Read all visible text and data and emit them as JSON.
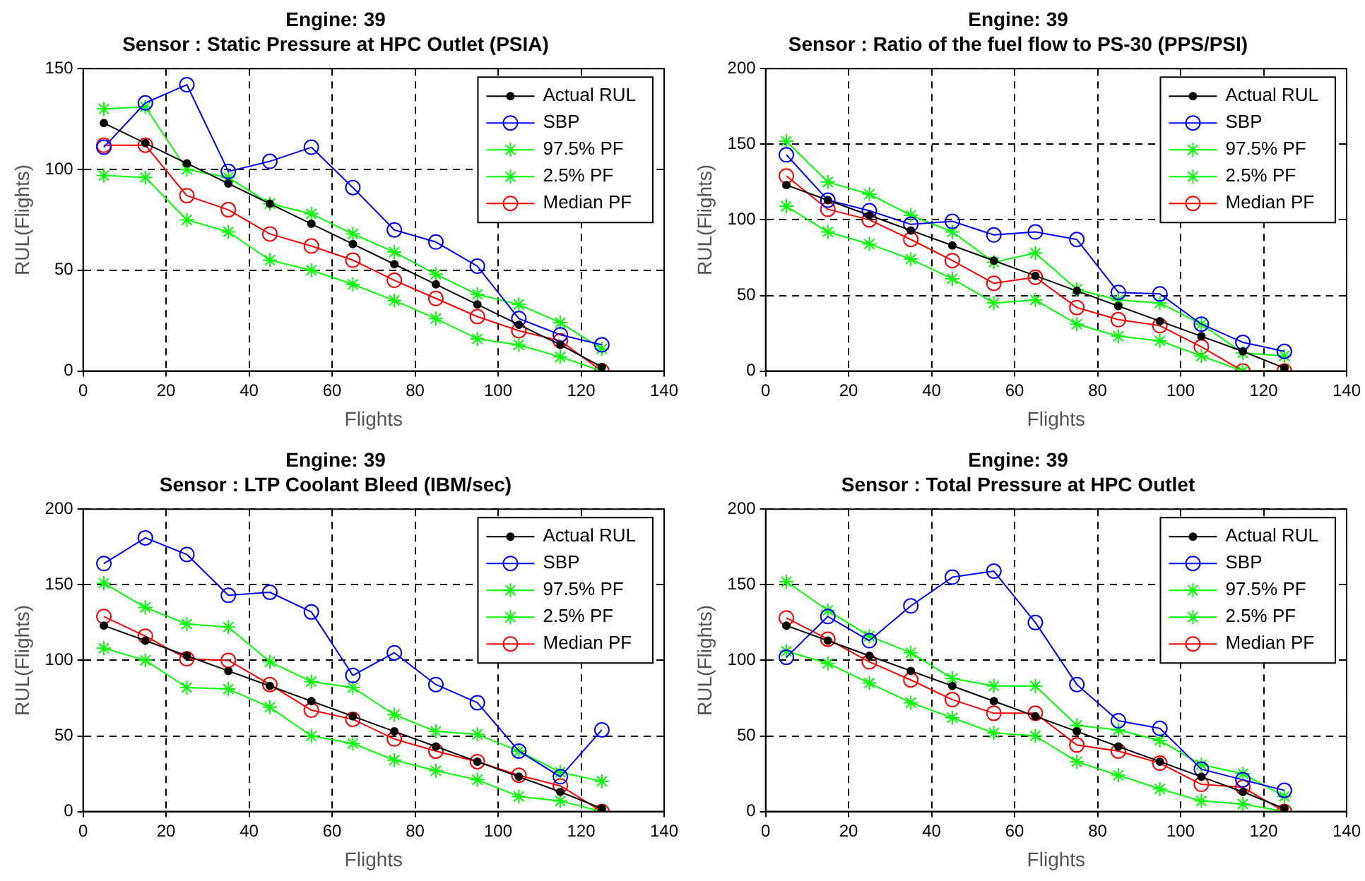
{
  "chart_data": [
    {
      "type": "line",
      "title": "Engine: 39",
      "subtitle": "Sensor : Static Pressure at HPC Outlet (PSIA)",
      "xlabel": "Flights",
      "ylabel": "RUL(Flights)",
      "x": [
        5,
        15,
        25,
        35,
        45,
        55,
        65,
        75,
        85,
        95,
        105,
        115,
        125
      ],
      "xlim": [
        0,
        140
      ],
      "xticks": [
        0,
        20,
        40,
        60,
        80,
        100,
        120,
        140
      ],
      "ylim": [
        0,
        150
      ],
      "yticks": [
        0,
        50,
        100,
        150
      ],
      "grid": true,
      "legend": "top right",
      "line_style": "solid",
      "series": [
        {
          "name": "Actual RUL",
          "color": "#000000",
          "marker": "circle",
          "values": [
            123,
            113,
            103,
            93,
            83,
            73,
            63,
            53,
            43,
            33,
            23,
            13,
            2
          ]
        },
        {
          "name": "SBP",
          "color": "#0000ff",
          "marker": "circle",
          "values": [
            111,
            133,
            142,
            99,
            104,
            111,
            91,
            70,
            64,
            52,
            26,
            18,
            13
          ]
        },
        {
          "name": "97.5% PF",
          "color": "#00ff00",
          "marker": "cross",
          "values": [
            130,
            131,
            100,
            96,
            83,
            78,
            68,
            59,
            48,
            38,
            33,
            24,
            11
          ]
        },
        {
          "name": "2.5% PF",
          "color": "#00ff00",
          "marker": "cross",
          "values": [
            97,
            96,
            75,
            69,
            55,
            50,
            43,
            35,
            26,
            16,
            13,
            7,
            0
          ]
        },
        {
          "name": "Median PF",
          "color": "#ff0000",
          "marker": "circle",
          "values": [
            112,
            112,
            87,
            80,
            68,
            62,
            55,
            45,
            36,
            27,
            20,
            15,
            0
          ]
        }
      ]
    },
    {
      "type": "line",
      "title": "Engine: 39",
      "subtitle": "Sensor : Ratio of the fuel flow to PS-30 (PPS/PSI)",
      "xlabel": "Flights",
      "ylabel": "RUL(Flights)",
      "x": [
        5,
        15,
        25,
        35,
        45,
        55,
        65,
        75,
        85,
        95,
        105,
        115,
        125
      ],
      "xlim": [
        0,
        140
      ],
      "xticks": [
        0,
        20,
        40,
        60,
        80,
        100,
        120,
        140
      ],
      "ylim": [
        0,
        200
      ],
      "yticks": [
        0,
        50,
        100,
        150,
        200
      ],
      "grid": true,
      "legend": "top right",
      "line_style": "solid",
      "series": [
        {
          "name": "Actual RUL",
          "color": "#000000",
          "marker": "circle",
          "values": [
            123,
            113,
            103,
            93,
            83,
            73,
            63,
            53,
            43,
            33,
            23,
            13,
            2
          ]
        },
        {
          "name": "SBP",
          "color": "#0000ff",
          "marker": "circle",
          "values": [
            143,
            113,
            106,
            97,
            99,
            90,
            92,
            87,
            52,
            51,
            31,
            19,
            13
          ]
        },
        {
          "name": "97.5% PF",
          "color": "#00ff00",
          "marker": "cross",
          "values": [
            152,
            125,
            117,
            103,
            92,
            72,
            78,
            54,
            47,
            45,
            31,
            12,
            10
          ]
        },
        {
          "name": "2.5% PF",
          "color": "#00ff00",
          "marker": "cross",
          "values": [
            109,
            92,
            84,
            74,
            61,
            45,
            47,
            31,
            23,
            20,
            10,
            0,
            0
          ]
        },
        {
          "name": "Median PF",
          "color": "#ff0000",
          "marker": "circle",
          "values": [
            129,
            107,
            100,
            87,
            73,
            58,
            62,
            42,
            34,
            30,
            16,
            0,
            0
          ]
        }
      ]
    },
    {
      "type": "line",
      "title": "Engine: 39",
      "subtitle": "Sensor : LTP Coolant Bleed (IBM/sec)",
      "xlabel": "Flights",
      "ylabel": "RUL(Flights)",
      "x": [
        5,
        15,
        25,
        35,
        45,
        55,
        65,
        75,
        85,
        95,
        105,
        115,
        125
      ],
      "xlim": [
        0,
        140
      ],
      "xticks": [
        0,
        20,
        40,
        60,
        80,
        100,
        120,
        140
      ],
      "ylim": [
        0,
        200
      ],
      "yticks": [
        0,
        50,
        100,
        150,
        200
      ],
      "grid": true,
      "legend": "top right",
      "line_style": "solid",
      "series": [
        {
          "name": "Actual RUL",
          "color": "#000000",
          "marker": "circle",
          "values": [
            123,
            113,
            103,
            93,
            83,
            73,
            63,
            53,
            43,
            33,
            23,
            13,
            2
          ]
        },
        {
          "name": "SBP",
          "color": "#0000ff",
          "marker": "circle",
          "values": [
            164,
            181,
            170,
            143,
            145,
            132,
            90,
            105,
            84,
            72,
            40,
            23,
            54
          ]
        },
        {
          "name": "97.5% PF",
          "color": "#00ff00",
          "marker": "cross",
          "values": [
            151,
            135,
            124,
            122,
            99,
            86,
            82,
            64,
            53,
            51,
            40,
            26,
            20
          ]
        },
        {
          "name": "2.5% PF",
          "color": "#00ff00",
          "marker": "cross",
          "values": [
            108,
            100,
            82,
            81,
            69,
            50,
            45,
            34,
            27,
            21,
            10,
            7,
            0
          ]
        },
        {
          "name": "Median PF",
          "color": "#ff0000",
          "marker": "circle",
          "values": [
            129,
            116,
            101,
            100,
            84,
            67,
            61,
            48,
            40,
            33,
            24,
            17,
            0
          ]
        }
      ]
    },
    {
      "type": "line",
      "title": "Engine: 39",
      "subtitle": "Sensor : Total Pressure at HPC Outlet",
      "xlabel": "Flights",
      "ylabel": "RUL(Flights)",
      "x": [
        5,
        15,
        25,
        35,
        45,
        55,
        65,
        75,
        85,
        95,
        105,
        115,
        125
      ],
      "xlim": [
        0,
        140
      ],
      "xticks": [
        0,
        20,
        40,
        60,
        80,
        100,
        120,
        140
      ],
      "ylim": [
        0,
        200
      ],
      "yticks": [
        0,
        50,
        100,
        150,
        200
      ],
      "grid": true,
      "legend": "top right",
      "line_style": "solid",
      "series": [
        {
          "name": "Actual RUL",
          "color": "#000000",
          "marker": "circle",
          "values": [
            123,
            113,
            103,
            93,
            83,
            73,
            63,
            53,
            43,
            33,
            23,
            13,
            2
          ]
        },
        {
          "name": "SBP",
          "color": "#0000ff",
          "marker": "circle",
          "values": [
            102,
            129,
            113,
            136,
            155,
            159,
            125,
            84,
            60,
            55,
            28,
            21,
            14
          ]
        },
        {
          "name": "97.5% PF",
          "color": "#00ff00",
          "marker": "cross",
          "values": [
            152,
            133,
            116,
            105,
            88,
            83,
            83,
            57,
            54,
            47,
            31,
            25,
            10
          ]
        },
        {
          "name": "2.5% PF",
          "color": "#00ff00",
          "marker": "cross",
          "values": [
            106,
            98,
            85,
            72,
            62,
            52,
            50,
            33,
            24,
            15,
            7,
            5,
            0
          ]
        },
        {
          "name": "Median PF",
          "color": "#ff0000",
          "marker": "circle",
          "values": [
            128,
            114,
            99,
            87,
            74,
            65,
            65,
            44,
            40,
            32,
            18,
            16,
            0
          ]
        }
      ]
    }
  ]
}
